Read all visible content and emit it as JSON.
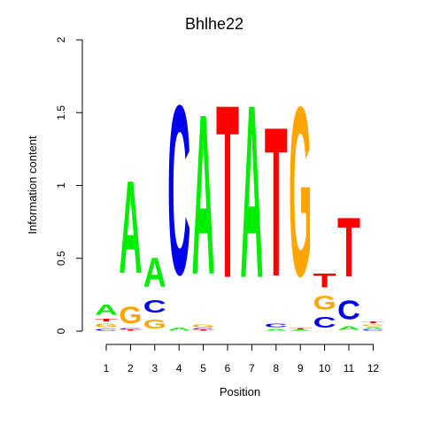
{
  "chart_data": {
    "type": "sequence-logo",
    "title": "Bhlhe22",
    "xlabel": "Position",
    "ylabel": "Information content",
    "ylim": [
      0,
      2
    ],
    "y_ticks": [
      "0",
      "0.5",
      "1",
      "1.5",
      "2"
    ],
    "y_tick_values": [
      0,
      0.5,
      1,
      1.5,
      2
    ],
    "x_ticks": [
      "1",
      "2",
      "3",
      "4",
      "5",
      "6",
      "7",
      "8",
      "9",
      "10",
      "11",
      "12"
    ],
    "colors": {
      "A": "#00ee00",
      "C": "#0000ee",
      "G": "#ffa500",
      "T": "#ff0000"
    },
    "positions": [
      {
        "position": 1,
        "letters": [
          [
            "C",
            0.02
          ],
          [
            "G",
            0.04
          ],
          [
            "T",
            0.03
          ],
          [
            "A",
            0.11
          ]
        ]
      },
      {
        "position": 2,
        "letters": [
          [
            "T",
            0.01
          ],
          [
            "C",
            0.01
          ],
          [
            "G",
            0.18
          ],
          [
            "A",
            1.02
          ]
        ]
      },
      {
        "position": 3,
        "letters": [
          [
            "G",
            0.1
          ],
          [
            "C",
            0.14
          ],
          [
            "A",
            0.32
          ]
        ]
      },
      {
        "position": 4,
        "letters": [
          [
            "A",
            0.03
          ],
          [
            "C",
            1.86
          ]
        ]
      },
      {
        "position": 5,
        "letters": [
          [
            "T",
            0.01
          ],
          [
            "C",
            0.01
          ],
          [
            "G",
            0.03
          ],
          [
            "A",
            1.76
          ]
        ]
      },
      {
        "position": 6,
        "letters": [
          [
            "T",
            1.9
          ]
        ]
      },
      {
        "position": 7,
        "letters": [
          [
            "A",
            1.9
          ]
        ]
      },
      {
        "position": 8,
        "letters": [
          [
            "A",
            0.02
          ],
          [
            "C",
            0.04
          ],
          [
            "T",
            1.64
          ]
        ]
      },
      {
        "position": 9,
        "letters": [
          [
            "A",
            0.01
          ],
          [
            "T",
            0.01
          ],
          [
            "G",
            1.86
          ]
        ]
      },
      {
        "position": 10,
        "letters": [
          [
            "C",
            0.12
          ],
          [
            "G",
            0.15
          ],
          [
            "T",
            0.15
          ]
        ]
      },
      {
        "position": 11,
        "letters": [
          [
            "A",
            0.04
          ],
          [
            "C",
            0.21
          ],
          [
            "T",
            0.65
          ]
        ]
      },
      {
        "position": 12,
        "letters": [
          [
            "C",
            0.01
          ],
          [
            "A",
            0.02
          ],
          [
            "G",
            0.02
          ],
          [
            "T",
            0.02
          ]
        ]
      }
    ]
  }
}
